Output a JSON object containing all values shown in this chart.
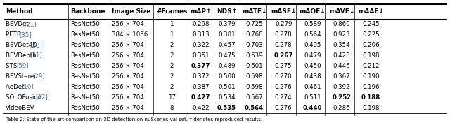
{
  "columns": [
    "Method",
    "Backbone",
    "Image Size",
    "#Frames",
    "mAP↑",
    "NDS↑",
    "mATE↓",
    "mASE↓",
    "mAOE↓",
    "mAVE↓",
    "mAAE↓"
  ],
  "rows": [
    [
      "BEVDet [21]",
      "ResNet50",
      "256 × 704",
      "1",
      "0.298",
      "0.379",
      "0.725",
      "0.279",
      "0.589",
      "0.860",
      "0.245"
    ],
    [
      "PETR [35]",
      "ResNet50",
      "384 × 1056",
      "1",
      "0.313",
      "0.381",
      "0.768",
      "0.278",
      "0.564",
      "0.923",
      "0.225"
    ],
    [
      "BEVDet4D [20]",
      "ResNet50",
      "256 × 704",
      "2",
      "0.322",
      "0.457",
      "0.703",
      "0.278",
      "0.495",
      "0.354",
      "0.206"
    ],
    [
      "BEVDepth [31]",
      "ResNet50",
      "256 × 704",
      "2",
      "0.351",
      "0.475",
      "0.639",
      "0.267",
      "0.479",
      "0.428",
      "0.198"
    ],
    [
      "STS [59]",
      "ResNet50",
      "256 × 704",
      "2",
      "0.377",
      "0.489",
      "0.601",
      "0.275",
      "0.450",
      "0.446",
      "0.212"
    ],
    [
      "BEVStereo [29]",
      "ResNet50",
      "256 × 704",
      "2",
      "0.372",
      "0.500",
      "0.598",
      "0.270",
      "0.438",
      "0.367",
      "0.190"
    ],
    [
      "AeDet [10]",
      "ResNet50",
      "256 × 704",
      "2",
      "0.387",
      "0.501",
      "0.598",
      "0.276",
      "0.461",
      "0.392",
      "0.196"
    ],
    [
      "SOLOFusion [42]",
      "ResNet50",
      "256 × 704",
      "17",
      "0.427",
      "0.534",
      "0.567",
      "0.274",
      "0.511",
      "0.252",
      "0.188"
    ],
    [
      "VideoBEV",
      "ResNet50",
      "256 × 704",
      "8",
      "0.422",
      "0.535",
      "0.564",
      "0.276",
      "0.440",
      "0.286",
      "0.198"
    ]
  ],
  "bold_cells": {
    "4_4": true,
    "7_4": true,
    "7_9": true,
    "7_10": true,
    "8_5": true,
    "8_6": true,
    "8_8": true,
    "3_7": true
  },
  "ref_colors": {
    "BEVDet [21]": "#4472c4",
    "PETR [35]": "#4472c4",
    "BEVDet4D [20]": "#4472c4",
    "BEVDepth [31]": "#4472c4",
    "STS [59]": "#4472c4",
    "BEVStereo [29]": "#4472c4",
    "AeDet [10]": "#4472c4",
    "SOLOFusion [42]": "#4472c4",
    "VideoBEV": "#000000"
  },
  "caption": "Table 2: State-of-the-art comparison on 3D detection on nuScenes val set. ‡ denotes reproduced results.",
  "bg_color": "#ffffff",
  "header_color": "#000000",
  "figsize": [
    6.4,
    1.76
  ],
  "dpi": 100
}
